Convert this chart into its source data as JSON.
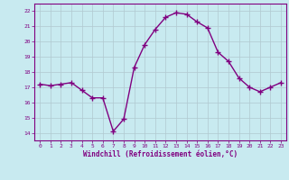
{
  "x": [
    0,
    1,
    2,
    3,
    4,
    5,
    6,
    7,
    8,
    9,
    10,
    11,
    12,
    13,
    14,
    15,
    16,
    17,
    18,
    19,
    20,
    21,
    22,
    23
  ],
  "y": [
    17.2,
    17.1,
    17.2,
    17.3,
    16.8,
    16.3,
    16.3,
    14.1,
    14.9,
    18.3,
    19.8,
    20.8,
    21.6,
    21.9,
    21.8,
    21.3,
    20.9,
    19.3,
    18.7,
    17.6,
    17.0,
    16.7,
    17.0,
    17.3
  ],
  "line_color": "#800080",
  "marker": "+",
  "marker_size": 4,
  "bg_color": "#c8eaf0",
  "grid_color": "#b0c8d0",
  "xlabel": "Windchill (Refroidissement éolien,°C)",
  "xlabel_color": "#800080",
  "tick_color": "#800080",
  "ylim": [
    13.5,
    22.5
  ],
  "yticks": [
    14,
    15,
    16,
    17,
    18,
    19,
    20,
    21,
    22
  ],
  "xticks": [
    0,
    1,
    2,
    3,
    4,
    5,
    6,
    7,
    8,
    9,
    10,
    11,
    12,
    13,
    14,
    15,
    16,
    17,
    18,
    19,
    20,
    21,
    22,
    23
  ],
  "line_width": 1.0,
  "spine_color": "#800080"
}
